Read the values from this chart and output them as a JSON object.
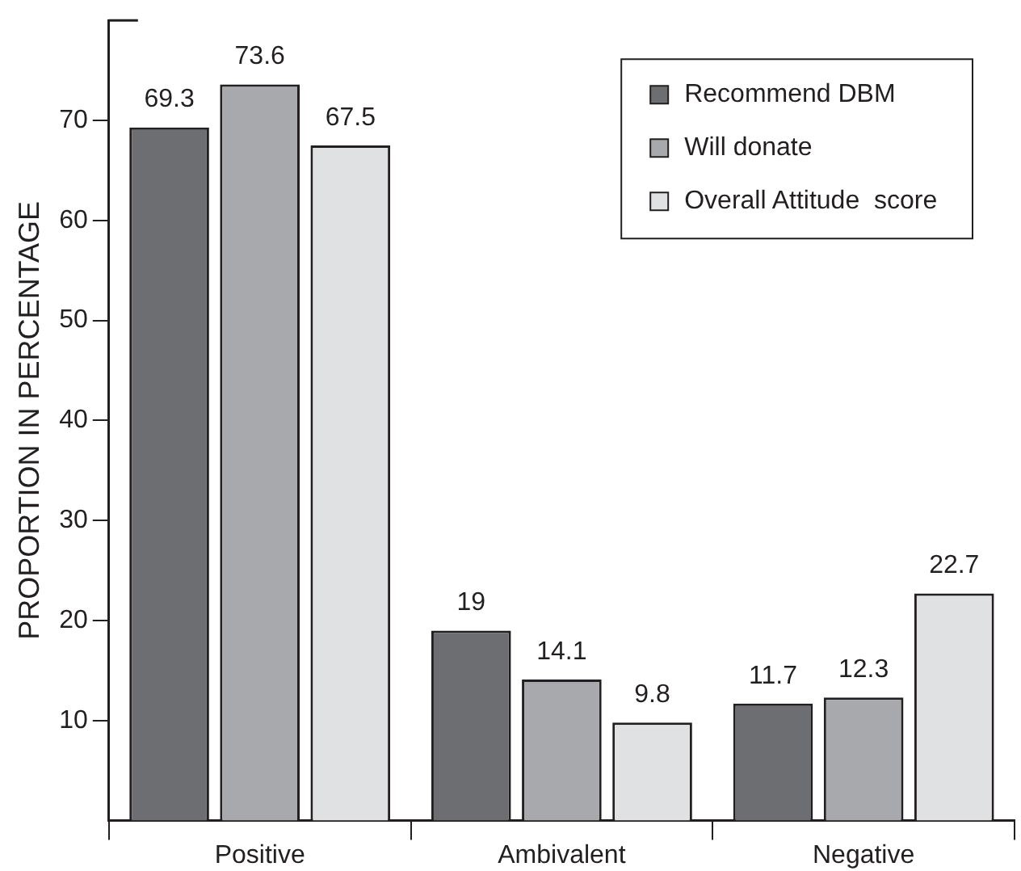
{
  "chart_data": {
    "type": "bar",
    "ylabel": "PROPORTION IN PERCENTAGE",
    "categories": [
      "Positive",
      "Ambivalent",
      "Negative"
    ],
    "series": [
      {
        "name": "Recommend DBM",
        "color": "#6d6e71",
        "values": [
          69.3,
          19,
          11.7
        ]
      },
      {
        "name": "Will donate",
        "color": "#a7a9ac",
        "values": [
          73.6,
          14.1,
          12.3
        ]
      },
      {
        "name": "Overall Attitude  score",
        "color": "#e0e1e3",
        "values": [
          67.5,
          9.8,
          22.7
        ]
      }
    ],
    "ylim": [
      0,
      80
    ],
    "yticks": [
      10,
      20,
      30,
      40,
      50,
      60,
      70
    ],
    "grid": false,
    "legend": "top right",
    "data_labels": true
  }
}
